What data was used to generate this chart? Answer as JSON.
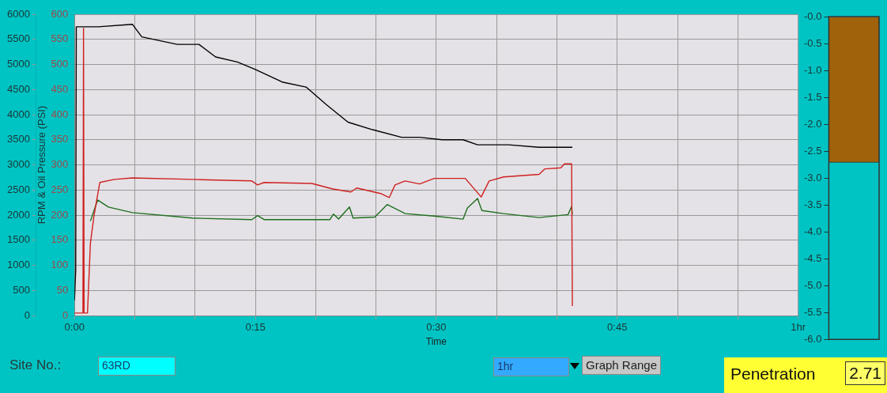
{
  "chart_data": [
    {
      "type": "line",
      "xlabel": "Time",
      "y2label": "RPM & Oil Pressure (PSI)",
      "series": [
        {
          "color": "#000000",
          "axis": "y",
          "x": [
            0,
            0.0017,
            0.0025,
            0.0033,
            0.033,
            0.08,
            0.093,
            0.142,
            0.172,
            0.195,
            0.225,
            0.25,
            0.287,
            0.32,
            0.348,
            0.378,
            0.412,
            0.452,
            0.477,
            0.508,
            0.537,
            0.557,
            0.6,
            0.642,
            0.688
          ],
          "values": [
            300,
            900,
            5750,
            5750,
            5750,
            5800,
            5550,
            5400,
            5400,
            5150,
            5050,
            4900,
            4650,
            4550,
            4200,
            3850,
            3700,
            3550,
            3550,
            3500,
            3500,
            3400,
            3400,
            3350,
            3350
          ]
        },
        {
          "color": "#d02020",
          "axis": "y2",
          "x": [
            0,
            0.0117,
            0.0125,
            0.0133,
            0.018,
            0.022,
            0.027,
            0.035,
            0.055,
            0.08,
            0.163,
            0.245,
            0.253,
            0.262,
            0.328,
            0.357,
            0.382,
            0.39,
            0.423,
            0.435,
            0.443,
            0.457,
            0.477,
            0.497,
            0.54,
            0.562,
            0.573,
            0.593,
            0.642,
            0.65,
            0.672,
            0.677,
            0.687,
            0.688
          ],
          "values": [
            5,
            5,
            572,
            5,
            5,
            144,
            199,
            265,
            271,
            274,
            271,
            268,
            260,
            265,
            263,
            252,
            246,
            254,
            243,
            235,
            260,
            268,
            262,
            273,
            273,
            236,
            268,
            276,
            281,
            292,
            294,
            302,
            302,
            19
          ]
        },
        {
          "color": "#1e6e1e",
          "axis": "y2",
          "x": [
            0.022,
            0.032,
            0.047,
            0.08,
            0.163,
            0.245,
            0.253,
            0.262,
            0.353,
            0.358,
            0.365,
            0.38,
            0.385,
            0.415,
            0.432,
            0.457,
            0.497,
            0.537,
            0.543,
            0.557,
            0.563,
            0.593,
            0.642,
            0.682,
            0.687,
            0.688
          ],
          "values": [
            188,
            230,
            216,
            205,
            194,
            191,
            199,
            191,
            191,
            202,
            192,
            216,
            194,
            196,
            221,
            203,
            198,
            192,
            214,
            233,
            209,
            203,
            195,
            201,
            217,
            201
          ]
        }
      ],
      "xlim": [
        0,
        1
      ],
      "xticks": [
        {
          "value": 0,
          "label": "0:00"
        },
        {
          "value": 0.0833,
          "label": null
        },
        {
          "value": 0.1667,
          "label": null
        },
        {
          "value": 0.25,
          "label": "0:15"
        },
        {
          "value": 0.3333,
          "label": null
        },
        {
          "value": 0.4167,
          "label": null
        },
        {
          "value": 0.5,
          "label": "0:30"
        },
        {
          "value": 0.5833,
          "label": null
        },
        {
          "value": 0.6667,
          "label": null
        },
        {
          "value": 0.75,
          "label": "0:45"
        },
        {
          "value": 0.8333,
          "label": null
        },
        {
          "value": 0.9167,
          "label": null
        },
        {
          "value": 1,
          "label": "1hr"
        }
      ],
      "ylim": [
        0,
        6000
      ],
      "yticks": [
        0,
        500,
        1000,
        1500,
        2000,
        2500,
        3000,
        3500,
        4000,
        4500,
        5000,
        5500,
        6000
      ],
      "y2lim": [
        0,
        600
      ],
      "y2ticks": [
        0,
        50,
        100,
        150,
        200,
        250,
        300,
        350,
        400,
        450,
        500,
        550,
        600
      ],
      "grid": true,
      "legend": false,
      "annotations": [
        "Site No.:",
        "63RD",
        "1hr",
        "Graph Range"
      ]
    },
    {
      "type": "bar",
      "title": "Penetration",
      "categories": [
        null
      ],
      "values": [
        -2.71
      ],
      "color": "#a0620a",
      "ylim": [
        -6,
        0
      ],
      "yticks": [
        {
          "value": 0,
          "label": "-0.0"
        },
        {
          "value": -0.5,
          "label": "-0.5"
        },
        {
          "value": -1,
          "label": "-1.0"
        },
        {
          "value": -1.5,
          "label": "-1.5"
        },
        {
          "value": -2,
          "label": "-2.0"
        },
        {
          "value": -2.5,
          "label": "-2.5"
        },
        {
          "value": -3,
          "label": "-3.0"
        },
        {
          "value": -3.5,
          "label": "-3.5"
        },
        {
          "value": -4,
          "label": "-4.0"
        },
        {
          "value": -4.5,
          "label": "-4.5"
        },
        {
          "value": -5,
          "label": "-5.0"
        },
        {
          "value": -5.5,
          "label": "-5.5"
        },
        {
          "value": -6,
          "label": "-6.0"
        }
      ],
      "legend": false,
      "annotations": [
        "2.71"
      ]
    }
  ]
}
